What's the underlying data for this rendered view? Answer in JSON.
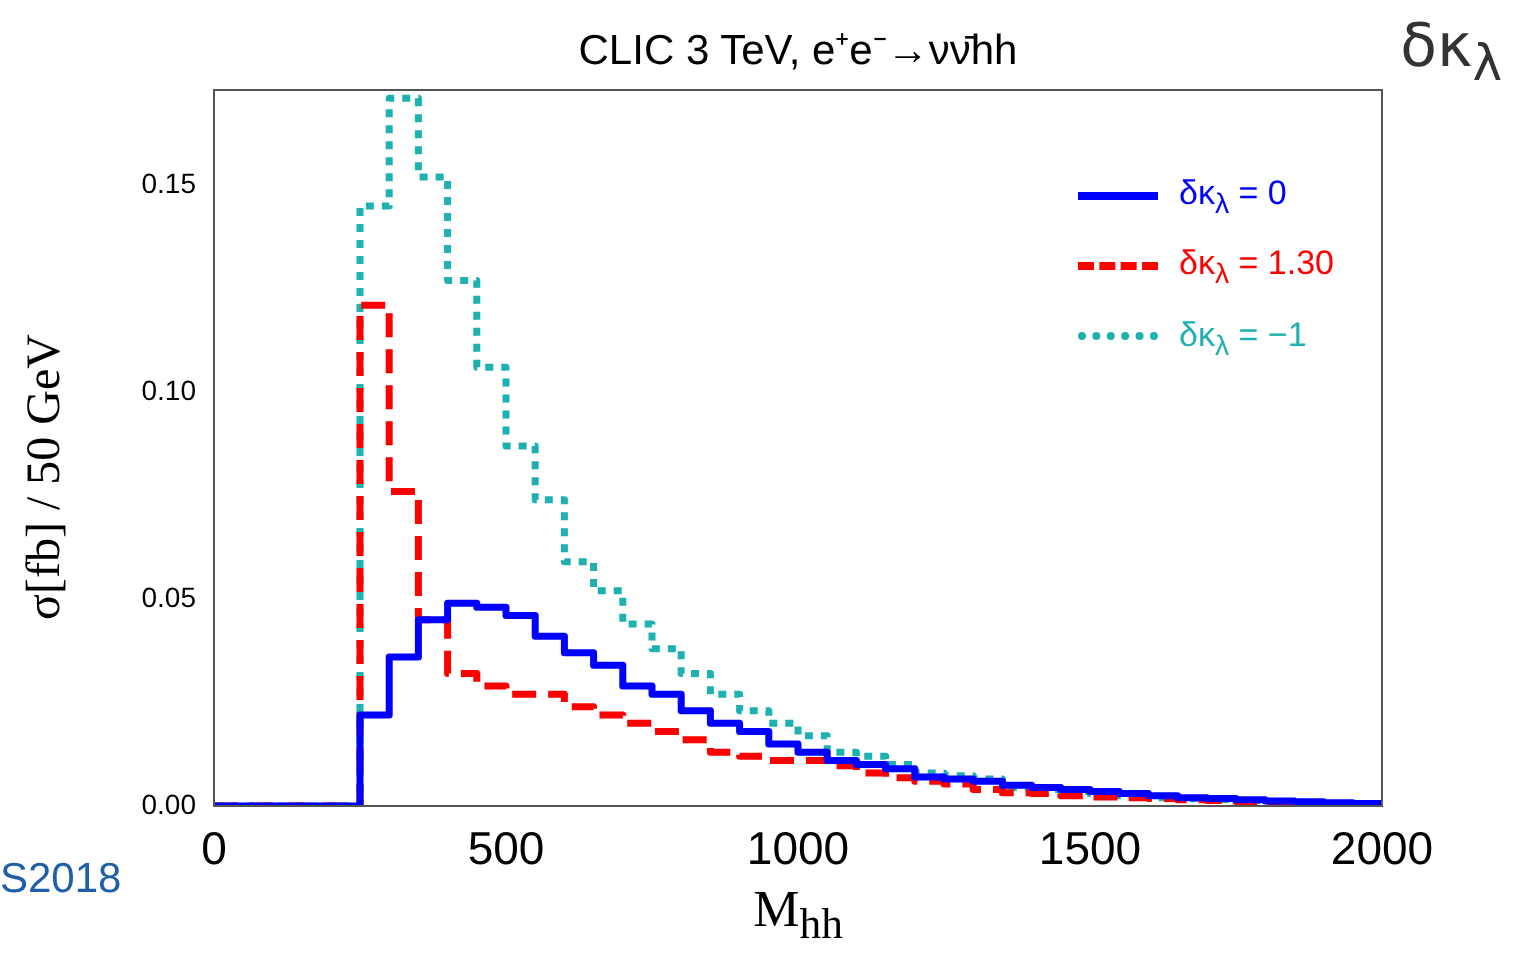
{
  "chart_data": {
    "type": "histogram",
    "title": "CLIC 3 TeV, e⁺e⁻→νν̄hh",
    "xlabel": "M$_{hh}$",
    "ylabel": "σ[fb] / 50 GeV",
    "annotations": [
      "δκ$_{λ}$",
      "S2018"
    ],
    "bins": [
      0,
      50,
      100,
      150,
      200,
      250,
      300,
      350,
      400,
      450,
      500,
      550,
      600,
      650,
      700,
      750,
      800,
      850,
      900,
      950,
      1000,
      1050,
      1100,
      1150,
      1200,
      1250,
      1300,
      1350,
      1400,
      1450,
      1500,
      1550,
      1600,
      1650,
      1700,
      1750,
      1800,
      1850,
      1900,
      1950,
      2000
    ],
    "series": [
      {
        "name": "δκ$_{λ}$ = 0",
        "color": "#0000ff",
        "line_style": "solid",
        "values": [
          0,
          0,
          0,
          0,
          0,
          0.022,
          0.036,
          0.045,
          0.049,
          0.048,
          0.046,
          0.041,
          0.037,
          0.034,
          0.029,
          0.027,
          0.023,
          0.02,
          0.018,
          0.015,
          0.013,
          0.011,
          0.01,
          0.009,
          0.007,
          0.0065,
          0.006,
          0.005,
          0.0045,
          0.004,
          0.0035,
          0.003,
          0.0025,
          0.002,
          0.0018,
          0.0015,
          0.0012,
          0.001,
          0.0008,
          0.0006
        ]
      },
      {
        "name": "δκ$_{λ}$ = 1.30",
        "color": "#ff0000",
        "line_style": "dashed",
        "values": [
          0,
          0,
          0,
          0,
          0,
          0.121,
          0.076,
          0.045,
          0.032,
          0.029,
          0.027,
          0.027,
          0.024,
          0.022,
          0.02,
          0.018,
          0.016,
          0.013,
          0.012,
          0.011,
          0.011,
          0.0097,
          0.008,
          0.0068,
          0.006,
          0.0053,
          0.004,
          0.0032,
          0.003,
          0.0025,
          0.0022,
          0.002,
          0.0018,
          0.0015,
          0.0013,
          0.0011,
          0.001,
          0.0008,
          0.0006,
          0.0005
        ]
      },
      {
        "name": "δκ$_{λ}$ = −1",
        "color": "#1fb0b0",
        "line_style": "dotted",
        "values": [
          0,
          0,
          0,
          0,
          0,
          0.145,
          0.171,
          0.152,
          0.127,
          0.106,
          0.087,
          0.074,
          0.059,
          0.052,
          0.044,
          0.038,
          0.032,
          0.027,
          0.023,
          0.02,
          0.017,
          0.013,
          0.012,
          0.01,
          0.008,
          0.0073,
          0.0065,
          0.0044,
          0.004,
          0.0035,
          0.003,
          0.0025,
          0.002,
          0.0018,
          0.0016,
          0.0013,
          0.001,
          0.0008,
          0.0006,
          0.0005
        ]
      }
    ],
    "xlim": [
      0,
      2000
    ],
    "xticks": [
      0,
      500,
      1000,
      1500,
      2000
    ],
    "ylim": [
      0,
      0.173
    ],
    "yticks": [
      {
        "value": 0,
        "label": "0.00"
      },
      {
        "value": 0.05,
        "label": "0.05"
      },
      {
        "value": 0.1,
        "label": "0.10"
      },
      {
        "value": 0.15,
        "label": "0.15"
      }
    ],
    "legend": "top right"
  }
}
